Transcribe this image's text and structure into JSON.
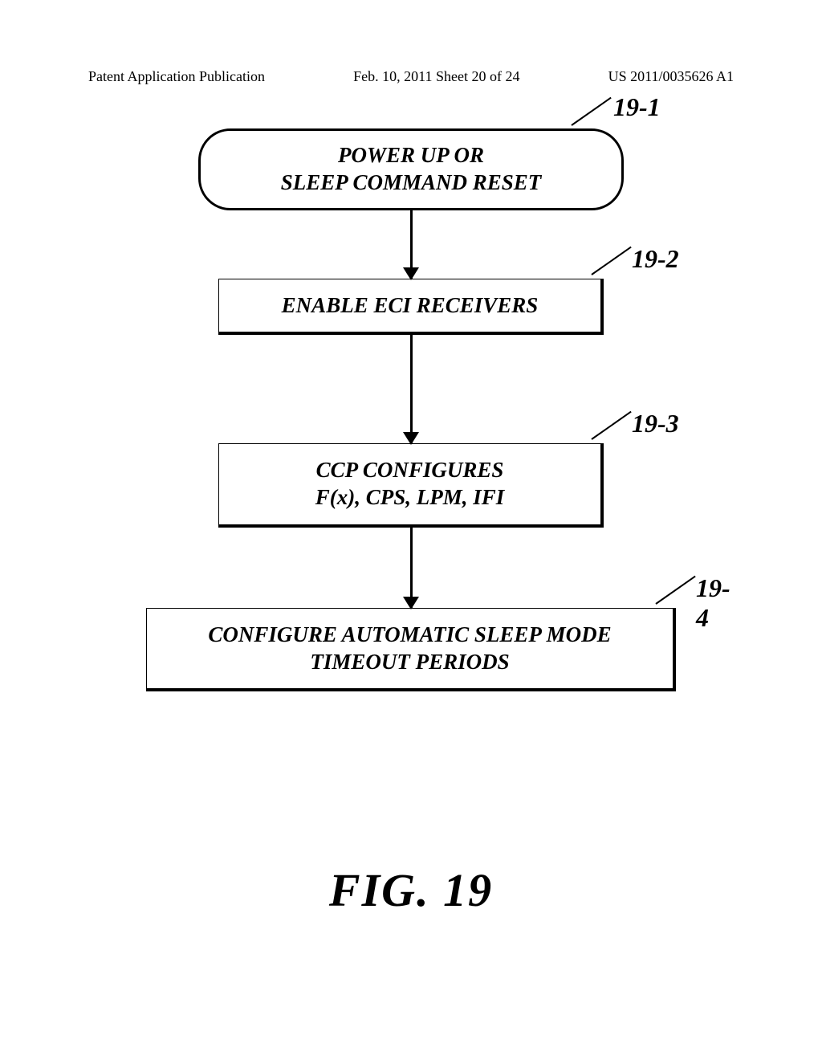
{
  "header": {
    "left": "Patent Application Publication",
    "center": "Feb. 10, 2011  Sheet 20 of 24",
    "right": "US 2011/0035626 A1"
  },
  "flowchart": {
    "nodes": [
      {
        "id": "19-1",
        "type": "terminator",
        "text": "POWER UP OR\nSLEEP COMMAND RESET",
        "ref": "19-1"
      },
      {
        "id": "19-2",
        "type": "process",
        "text": "ENABLE ECI RECEIVERS",
        "ref": "19-2"
      },
      {
        "id": "19-3",
        "type": "process",
        "text": "CCP CONFIGURES\nF(x), CPS, LPM, IFI",
        "ref": "19-3"
      },
      {
        "id": "19-4",
        "type": "process",
        "text": "CONFIGURE AUTOMATIC SLEEP MODE\nTIMEOUT PERIODS",
        "ref": "19-4"
      }
    ],
    "edges": [
      {
        "from": "19-1",
        "to": "19-2"
      },
      {
        "from": "19-2",
        "to": "19-3"
      },
      {
        "from": "19-3",
        "to": "19-4"
      }
    ],
    "arrow_color": "#000000",
    "box_border_color": "#000000",
    "background_color": "#ffffff",
    "text_fontsize": 27,
    "ref_fontsize": 32,
    "fig_fontsize": 58
  },
  "figure_label": "FIG. 19"
}
